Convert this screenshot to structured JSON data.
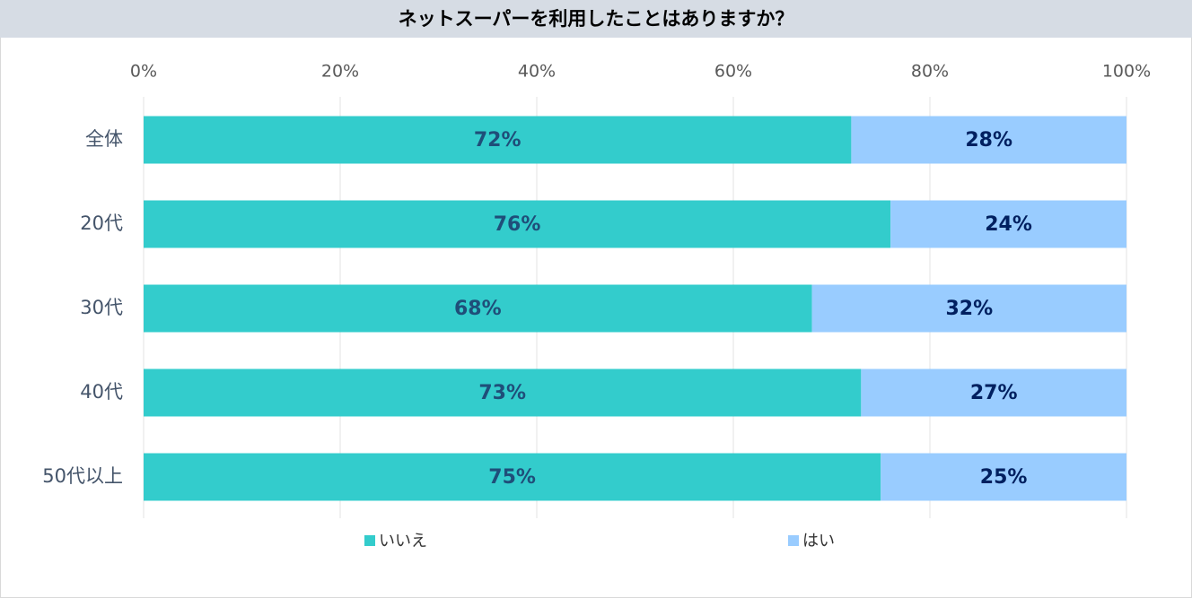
{
  "chart_data": {
    "type": "stacked-bar-horizontal",
    "title": "ネットスーパーを利用したことはありますか？",
    "categories": [
      "全体",
      "20代",
      "30代",
      "40代",
      "50代以上"
    ],
    "series": [
      {
        "name": "いいえ",
        "color": "#33cccc",
        "values": [
          72,
          76,
          68,
          73,
          75
        ],
        "value_labels": [
          "72%",
          "76%",
          "68%",
          "73%",
          "75%"
        ]
      },
      {
        "name": "はい",
        "color": "#99ccff",
        "values": [
          28,
          24,
          32,
          27,
          25
        ],
        "value_labels": [
          "28%",
          "24%",
          "32%",
          "27%",
          "25%"
        ]
      }
    ],
    "xlim": [
      0,
      100
    ],
    "xticks": [
      {
        "value": 0,
        "label": "0%"
      },
      {
        "value": 20,
        "label": "20%"
      },
      {
        "value": 40,
        "label": "40%"
      },
      {
        "value": 60,
        "label": "60%"
      },
      {
        "value": 80,
        "label": "80%"
      },
      {
        "value": 100,
        "label": "100%"
      }
    ],
    "grid": true
  }
}
